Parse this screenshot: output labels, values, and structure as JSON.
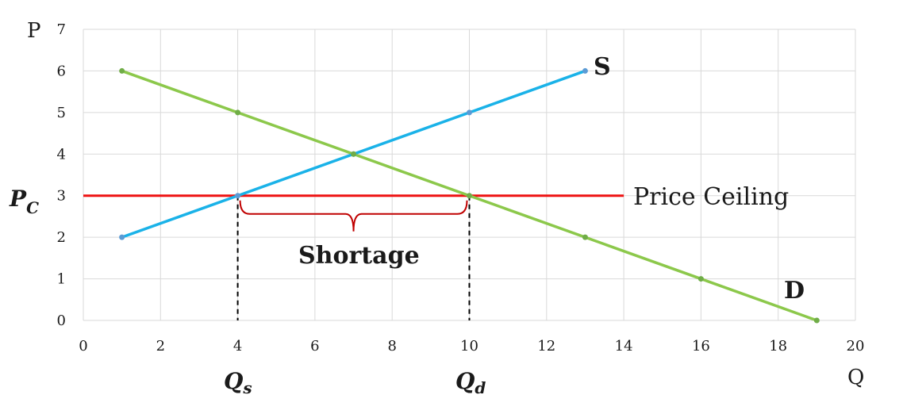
{
  "chart_data": {
    "type": "line",
    "xlabel": "Q",
    "ylabel": "P",
    "xlim": [
      0,
      20
    ],
    "ylim": [
      0,
      7
    ],
    "x_ticks": [
      0,
      2,
      4,
      6,
      8,
      10,
      12,
      14,
      16,
      18,
      20
    ],
    "y_ticks": [
      0,
      1,
      2,
      3,
      4,
      5,
      6,
      7
    ],
    "grid": true,
    "series": [
      {
        "name": "S",
        "color": "#1ab2e8",
        "marker_color": "#5b9bd5",
        "points": [
          [
            1,
            2
          ],
          [
            4,
            3
          ],
          [
            7,
            4
          ],
          [
            10,
            5
          ],
          [
            13,
            6
          ]
        ]
      },
      {
        "name": "D",
        "color": "#8cc84b",
        "marker_color": "#70ad47",
        "points": [
          [
            1,
            6
          ],
          [
            4,
            5
          ],
          [
            7,
            4
          ],
          [
            10,
            3
          ],
          [
            13,
            2
          ],
          [
            16,
            1
          ],
          [
            19,
            0
          ]
        ]
      }
    ],
    "price_ceiling": {
      "label": "Price Ceiling",
      "y": 3,
      "x_start": 0,
      "x_end": 14,
      "color": "#ee1111"
    },
    "price_label": {
      "main": "P",
      "sub": "C"
    },
    "qs": {
      "x": 4,
      "main": "Q",
      "sub": "s"
    },
    "qd": {
      "x": 10,
      "main": "Q",
      "sub": "d"
    },
    "shortage": {
      "label": "Shortage",
      "x_start": 4,
      "x_end": 10,
      "color": "#c00000"
    }
  }
}
